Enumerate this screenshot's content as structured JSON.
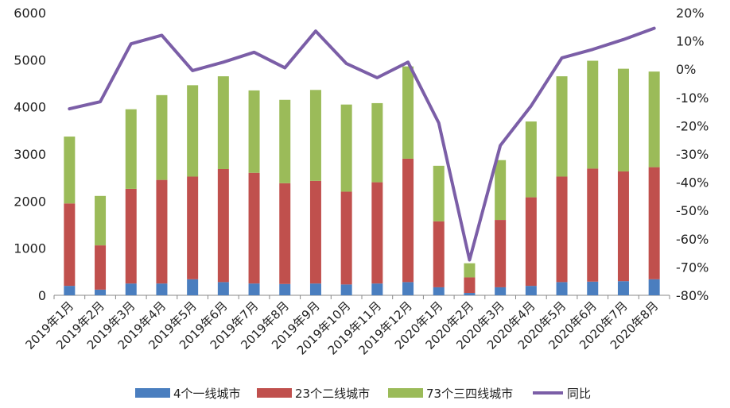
{
  "chart_data": {
    "type": "bar",
    "stacked": true,
    "categories": [
      "2019年1月",
      "2019年2月",
      "2019年3月",
      "2019年4月",
      "2019年5月",
      "2019年6月",
      "2019年7月",
      "2019年8月",
      "2019年9月",
      "2019年10月",
      "2019年11月",
      "2019年12月",
      "2020年1月",
      "2020年2月",
      "2020年3月",
      "2020年4月",
      "2020年5月",
      "2020年6月",
      "2020年7月",
      "2020年8月"
    ],
    "series": [
      {
        "name": "4个一线城市",
        "color": "#4a7ebf",
        "values": [
          200,
          120,
          250,
          250,
          340,
          280,
          250,
          240,
          250,
          230,
          250,
          280,
          170,
          50,
          170,
          200,
          280,
          290,
          300,
          340
        ]
      },
      {
        "name": "23个二线城市",
        "color": "#c0504d",
        "values": [
          1750,
          940,
          2010,
          2200,
          2180,
          2400,
          2350,
          2140,
          2180,
          1970,
          2150,
          2620,
          1400,
          330,
          1430,
          1880,
          2240,
          2400,
          2330,
          2380
        ]
      },
      {
        "name": "73个三四线城市",
        "color": "#9bbb59",
        "values": [
          1420,
          1050,
          1690,
          1800,
          1940,
          1970,
          1750,
          1770,
          1930,
          1850,
          1680,
          1960,
          1180,
          300,
          1270,
          1610,
          2130,
          2290,
          2180,
          2030
        ]
      }
    ],
    "line": {
      "name": "同比",
      "color": "#7b5ea7",
      "axis": "right",
      "values": [
        -14,
        -11.5,
        9,
        12,
        -0.5,
        2.5,
        6,
        0.5,
        13.5,
        2,
        -3,
        2.5,
        -19,
        -67.5,
        -27,
        -13,
        4,
        7,
        10.5,
        14.5
      ]
    },
    "y_left": {
      "min": 0,
      "max": 6000,
      "ticks": [
        0,
        1000,
        2000,
        3000,
        4000,
        5000,
        6000
      ],
      "tick_labels": [
        "0",
        "1000",
        "2000",
        "3000",
        "4000",
        "5000",
        "6000"
      ]
    },
    "y_right": {
      "min": -80,
      "max": 20,
      "ticks": [
        -80,
        -70,
        -60,
        -50,
        -40,
        -30,
        -20,
        -10,
        0,
        10,
        20
      ],
      "tick_labels": [
        "-80%",
        "-70%",
        "-60%",
        "-50%",
        "-40%",
        "-30%",
        "-20%",
        "-10%",
        "0%",
        "10%",
        "20%"
      ]
    },
    "legend_position": "bottom",
    "grid": false
  }
}
